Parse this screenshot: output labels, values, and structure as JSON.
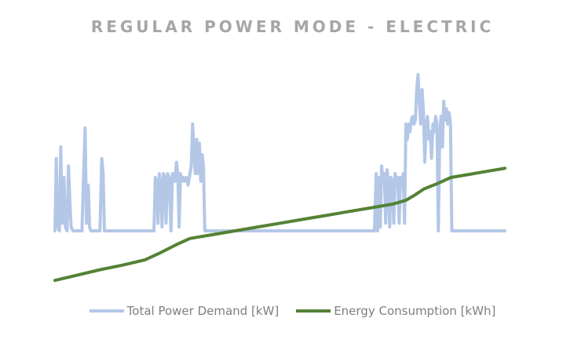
{
  "chart_data": {
    "type": "line",
    "title": "REGULAR POWER MODE - ELECTRIC",
    "xlabel": "",
    "ylabel": "",
    "grid": false,
    "axes_visible": false,
    "legend_position": "bottom",
    "colors": {
      "power": "#b4c7e7",
      "energy": "#548235",
      "title": "#a6a6a6",
      "legend_text": "#7f7f7f"
    },
    "x_range": [
      0,
      100
    ],
    "y_range": [
      -70,
      210
    ],
    "series": [
      {
        "name": "Total Power Demand [kW]",
        "color": "#b4c7e7",
        "points": [
          [
            0,
            0
          ],
          [
            0.3,
            95
          ],
          [
            0.6,
            5
          ],
          [
            1,
            0
          ],
          [
            1.3,
            110
          ],
          [
            1.6,
            10
          ],
          [
            2,
            70
          ],
          [
            2.3,
            5
          ],
          [
            2.7,
            0
          ],
          [
            3,
            85
          ],
          [
            3.3,
            40
          ],
          [
            3.6,
            5
          ],
          [
            4,
            0
          ],
          [
            6,
            0
          ],
          [
            6.4,
            80
          ],
          [
            6.7,
            135
          ],
          [
            7,
            10
          ],
          [
            7.4,
            60
          ],
          [
            7.7,
            5
          ],
          [
            8,
            0
          ],
          [
            10,
            0
          ],
          [
            10.4,
            95
          ],
          [
            10.7,
            75
          ],
          [
            11,
            0
          ],
          [
            12,
            0
          ],
          [
            22,
            0
          ],
          [
            22.3,
            70
          ],
          [
            22.6,
            65
          ],
          [
            22.9,
            10
          ],
          [
            23.2,
            75
          ],
          [
            23.5,
            60
          ],
          [
            23.8,
            5
          ],
          [
            24.1,
            75
          ],
          [
            24.4,
            70
          ],
          [
            24.7,
            10
          ],
          [
            25,
            75
          ],
          [
            25.4,
            70
          ],
          [
            25.8,
            0
          ],
          [
            26.1,
            75
          ],
          [
            26.4,
            75
          ],
          [
            26.7,
            65
          ],
          [
            27,
            90
          ],
          [
            27.3,
            75
          ],
          [
            27.6,
            5
          ],
          [
            27.9,
            75
          ],
          [
            28.2,
            65
          ],
          [
            28.5,
            70
          ],
          [
            28.8,
            65
          ],
          [
            29.2,
            70
          ],
          [
            29.6,
            60
          ],
          [
            30,
            75
          ],
          [
            30.3,
            85
          ],
          [
            30.6,
            140
          ],
          [
            30.9,
            100
          ],
          [
            31.2,
            75
          ],
          [
            31.5,
            120
          ],
          [
            31.8,
            75
          ],
          [
            32.1,
            115
          ],
          [
            32.4,
            65
          ],
          [
            32.7,
            100
          ],
          [
            33,
            85
          ],
          [
            33.3,
            0
          ],
          [
            34,
            0
          ],
          [
            40,
            0
          ],
          [
            45,
            0
          ],
          [
            50,
            0
          ],
          [
            55,
            0
          ],
          [
            60,
            0
          ],
          [
            65,
            0
          ],
          [
            70,
            0
          ],
          [
            71,
            0
          ],
          [
            71.4,
            75
          ],
          [
            71.7,
            0
          ],
          [
            72,
            70
          ],
          [
            72.3,
            5
          ],
          [
            72.6,
            85
          ],
          [
            72.9,
            65
          ],
          [
            73.2,
            75
          ],
          [
            73.5,
            10
          ],
          [
            73.8,
            80
          ],
          [
            74.1,
            65
          ],
          [
            74.4,
            5
          ],
          [
            74.7,
            70
          ],
          [
            75,
            65
          ],
          [
            75.3,
            10
          ],
          [
            75.6,
            75
          ],
          [
            75.9,
            60
          ],
          [
            76.2,
            70
          ],
          [
            76.5,
            10
          ],
          [
            76.8,
            70
          ],
          [
            77.1,
            60
          ],
          [
            77.4,
            75
          ],
          [
            77.7,
            10
          ],
          [
            78,
            140
          ],
          [
            78.3,
            120
          ],
          [
            78.6,
            140
          ],
          [
            78.9,
            130
          ],
          [
            79.2,
            145
          ],
          [
            79.5,
            150
          ],
          [
            79.8,
            140
          ],
          [
            80.1,
            145
          ],
          [
            80.4,
            185
          ],
          [
            80.7,
            205
          ],
          [
            81,
            170
          ],
          [
            81.3,
            140
          ],
          [
            81.6,
            185
          ],
          [
            81.9,
            155
          ],
          [
            82.2,
            90
          ],
          [
            82.5,
            140
          ],
          [
            82.8,
            150
          ],
          [
            83.1,
            120
          ],
          [
            83.4,
            130
          ],
          [
            83.7,
            95
          ],
          [
            84,
            140
          ],
          [
            84.3,
            130
          ],
          [
            84.6,
            150
          ],
          [
            84.9,
            140
          ],
          [
            85.2,
            0
          ],
          [
            85.5,
            120
          ],
          [
            85.8,
            150
          ],
          [
            86.1,
            110
          ],
          [
            86.4,
            170
          ],
          [
            86.7,
            145
          ],
          [
            87,
            160
          ],
          [
            87.3,
            140
          ],
          [
            87.6,
            155
          ],
          [
            87.9,
            140
          ],
          [
            88.2,
            0
          ],
          [
            89,
            0
          ],
          [
            100,
            0
          ]
        ]
      },
      {
        "name": "Energy Consumption [kWh]",
        "color": "#548235",
        "points": [
          [
            0,
            -65
          ],
          [
            5,
            -58
          ],
          [
            10,
            -51
          ],
          [
            15,
            -45
          ],
          [
            20,
            -38
          ],
          [
            23,
            -30
          ],
          [
            27,
            -18
          ],
          [
            30,
            -10
          ],
          [
            35,
            -5
          ],
          [
            40,
            0
          ],
          [
            45,
            5
          ],
          [
            50,
            10
          ],
          [
            55,
            15
          ],
          [
            60,
            20
          ],
          [
            65,
            25
          ],
          [
            70,
            30
          ],
          [
            75,
            35
          ],
          [
            78,
            40
          ],
          [
            80,
            47
          ],
          [
            82,
            55
          ],
          [
            85,
            62
          ],
          [
            88,
            70
          ],
          [
            92,
            74
          ],
          [
            96,
            78
          ],
          [
            100,
            82
          ]
        ]
      }
    ]
  }
}
